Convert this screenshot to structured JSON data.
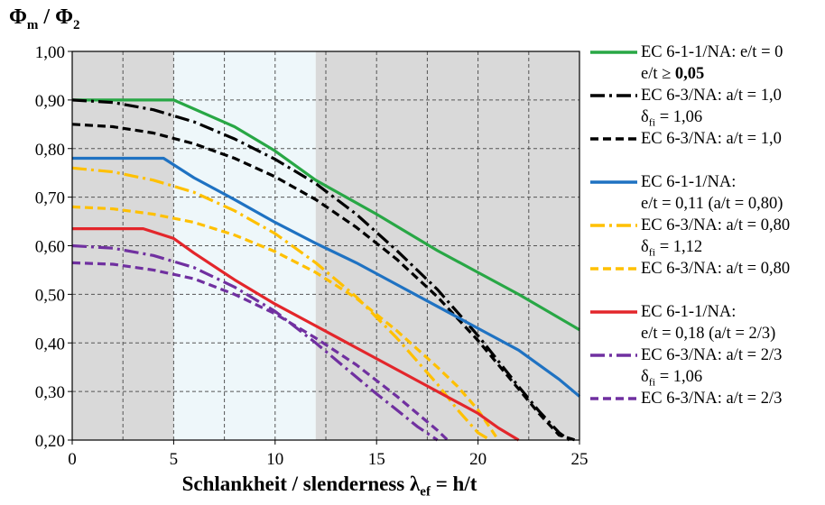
{
  "chart_data": {
    "type": "line",
    "ylabel_main": "Φ",
    "ylabel_sub1": "m",
    "ylabel_sep": " / Φ",
    "ylabel_sub2": "2",
    "xlabel_main": "Schlankheit / slenderness λ",
    "xlabel_sub": "ef",
    "xlabel_tail": " = h/t",
    "xlim": [
      0,
      25
    ],
    "ylim": [
      0.2,
      1.0
    ],
    "x_ticks": [
      "0",
      "5",
      "10",
      "15",
      "20",
      "25"
    ],
    "y_ticks": [
      "0,20",
      "0,30",
      "0,40",
      "0,50",
      "0,60",
      "0,70",
      "0,80",
      "0,90",
      "1,00"
    ],
    "grid": true,
    "background_regions": [
      {
        "x0": 0,
        "x1": 5,
        "color": "#d9d9d9"
      },
      {
        "x0": 5,
        "x1": 12,
        "color": "#eef7fa"
      },
      {
        "x0": 12,
        "x1": 25,
        "color": "#d9d9d9"
      }
    ],
    "series": [
      {
        "name": "EC 6-1-1/NA: e/t = 0",
        "color": "#28a745",
        "dash": "solid",
        "x": [
          0,
          5,
          8,
          10,
          12,
          15,
          18,
          20,
          22,
          25
        ],
        "y": [
          0.9,
          0.9,
          0.845,
          0.795,
          0.735,
          0.665,
          0.59,
          0.545,
          0.5,
          0.427
        ]
      },
      {
        "name": "EC 6-3/NA: a/t = 1,0 δfi = 1,06",
        "color": "#000000",
        "dash": "dashdot",
        "x": [
          0,
          2,
          4,
          6,
          8,
          10,
          12,
          14,
          16,
          18,
          20,
          22,
          23,
          24,
          24.5
        ],
        "y": [
          0.9,
          0.895,
          0.88,
          0.855,
          0.82,
          0.778,
          0.728,
          0.665,
          0.59,
          0.51,
          0.415,
          0.31,
          0.26,
          0.215,
          0.2
        ]
      },
      {
        "name": "EC 6-3/NA: a/t = 1,0",
        "color": "#000000",
        "dash": "dash",
        "x": [
          0,
          2,
          4,
          6,
          8,
          10,
          12,
          14,
          16,
          18,
          20,
          22,
          23,
          24,
          24.8
        ],
        "y": [
          0.85,
          0.845,
          0.832,
          0.81,
          0.78,
          0.742,
          0.695,
          0.638,
          0.572,
          0.495,
          0.405,
          0.305,
          0.255,
          0.21,
          0.2
        ]
      },
      {
        "name": "EC 6-1-1/NA: e/t = 0,11 (a/t = 0,80)",
        "color": "#1f72c2",
        "dash": "solid",
        "x": [
          0,
          4.5,
          6,
          8,
          10,
          12,
          14,
          16,
          18,
          20,
          22,
          24,
          25
        ],
        "y": [
          0.78,
          0.78,
          0.74,
          0.695,
          0.648,
          0.605,
          0.565,
          0.52,
          0.475,
          0.43,
          0.385,
          0.325,
          0.29
        ]
      },
      {
        "name": "EC 6-3/NA: a/t = 0,80 δfi = 1,12",
        "color": "#ffc000",
        "dash": "dashdot",
        "x": [
          0,
          2,
          4,
          6,
          8,
          10,
          12,
          14,
          16,
          18,
          19,
          20,
          20.6
        ],
        "y": [
          0.76,
          0.752,
          0.735,
          0.71,
          0.672,
          0.625,
          0.565,
          0.495,
          0.41,
          0.315,
          0.262,
          0.215,
          0.2
        ]
      },
      {
        "name": "EC 6-3/NA: a/t = 0,80",
        "color": "#ffc000",
        "dash": "dash",
        "x": [
          0,
          2,
          4,
          6,
          8,
          10,
          12,
          14,
          16,
          18,
          19,
          20,
          21
        ],
        "y": [
          0.68,
          0.676,
          0.665,
          0.648,
          0.622,
          0.588,
          0.545,
          0.492,
          0.425,
          0.35,
          0.31,
          0.262,
          0.2
        ]
      },
      {
        "name": "EC 6-1-1/NA: e/t = 0,18 (a/t = 2/3)",
        "color": "#e3262b",
        "dash": "solid",
        "x": [
          0,
          3.5,
          5,
          6,
          8,
          10,
          12,
          14,
          16,
          18,
          20,
          21,
          22
        ],
        "y": [
          0.635,
          0.635,
          0.615,
          0.585,
          0.53,
          0.48,
          0.435,
          0.39,
          0.345,
          0.3,
          0.255,
          0.225,
          0.2
        ]
      },
      {
        "name": "EC 6-3/NA: a/t = 2/3 δfi = 1,06",
        "color": "#7030a0",
        "dash": "dashdot",
        "x": [
          0,
          2,
          4,
          6,
          8,
          10,
          12,
          14,
          15,
          16,
          17,
          18
        ],
        "y": [
          0.6,
          0.595,
          0.58,
          0.555,
          0.515,
          0.465,
          0.4,
          0.33,
          0.295,
          0.262,
          0.228,
          0.2
        ]
      },
      {
        "name": "EC 6-3/NA: a/t = 2/3",
        "color": "#7030a0",
        "dash": "dash",
        "x": [
          0,
          2,
          4,
          6,
          8,
          10,
          12,
          14,
          16,
          17,
          18,
          18.5
        ],
        "y": [
          0.565,
          0.562,
          0.55,
          0.532,
          0.5,
          0.46,
          0.41,
          0.355,
          0.29,
          0.255,
          0.22,
          0.2
        ]
      }
    ]
  },
  "legend": [
    {
      "color": "#28a745",
      "dash": "solid",
      "line1": "EC 6-1-1/NA: e/t = 0",
      "line2a": "e/t ≥ ",
      "line2b": "0,05"
    },
    {
      "color": "#000000",
      "dash": "dashdot",
      "line1": "EC 6-3/NA: a/t = 1,0",
      "delta": "δ",
      "delta_sub": "fi",
      "delta_val": " = 1,06"
    },
    {
      "color": "#000000",
      "dash": "dash",
      "line1": "EC 6-3/NA: a/t = 1,0"
    },
    {
      "color": "#1f72c2",
      "dash": "solid",
      "line1": "EC 6-1-1/NA:",
      "line2": "e/t = 0,11 (a/t = 0,80)"
    },
    {
      "color": "#ffc000",
      "dash": "dashdot",
      "line1": "EC 6-3/NA: a/t = 0,80",
      "delta": "δ",
      "delta_sub": "fi",
      "delta_val": " = 1,12"
    },
    {
      "color": "#ffc000",
      "dash": "dash",
      "line1": "EC 6-3/NA: a/t = 0,80"
    },
    {
      "color": "#e3262b",
      "dash": "solid",
      "line1": "EC 6-1-1/NA:",
      "line2": "e/t = 0,18 (a/t = 2/3)"
    },
    {
      "color": "#7030a0",
      "dash": "dashdot",
      "line1": "EC 6-3/NA: a/t = 2/3",
      "delta": "δ",
      "delta_sub": "fi",
      "delta_val": " = 1,06"
    },
    {
      "color": "#7030a0",
      "dash": "dash",
      "line1": "EC 6-3/NA: a/t = 2/3"
    }
  ]
}
